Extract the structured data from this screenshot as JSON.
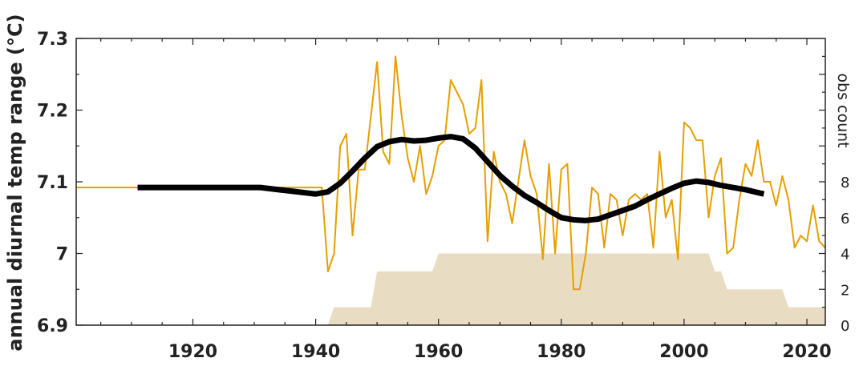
{
  "chart_data": {
    "type": "line",
    "xlabel": "",
    "ylabel": "annual diurnal temp range (°C)",
    "y2label": "obs count",
    "xlim": [
      1901,
      2023
    ],
    "ylim": [
      6.9,
      7.3
    ],
    "y2lim": [
      0,
      16
    ],
    "x_ticks": [
      1920,
      1940,
      1960,
      1980,
      2000,
      2020
    ],
    "y_ticks": [
      6.9,
      7.0,
      7.1,
      7.2,
      7.3
    ],
    "y_tick_labels": [
      "6.9",
      "7",
      "7.1",
      "7.2",
      "7.3"
    ],
    "y2_ticks": [
      0,
      2,
      4,
      6,
      8
    ],
    "grid": false,
    "colors": {
      "annual": "#E69F00",
      "smooth": "#000000",
      "count": "#E8DCC2"
    },
    "series": [
      {
        "kind": "annual",
        "x": [
          1901,
          1941,
          1942,
          1943,
          1944,
          1945,
          1946,
          1947,
          1948,
          1949,
          1950,
          1951,
          1952,
          1953,
          1954,
          1955,
          1956,
          1957,
          1958,
          1959,
          1960,
          1961,
          1962,
          1963,
          1964,
          1965,
          1966,
          1967,
          1968,
          1969,
          1970,
          1971,
          1972,
          1973,
          1974,
          1975,
          1976,
          1977,
          1978,
          1979,
          1980,
          1981,
          1982,
          1983,
          1984,
          1985,
          1986,
          1987,
          1988,
          1989,
          1990,
          1991,
          1992,
          1993,
          1994,
          1995,
          1996,
          1997,
          1998,
          1999,
          2000,
          2001,
          2002,
          2003,
          2004,
          2005,
          2006,
          2007,
          2008,
          2009,
          2010,
          2011,
          2012,
          2013,
          2014,
          2015,
          2016,
          2017,
          2018,
          2019,
          2020,
          2021,
          2022,
          2023
        ],
        "values": [
          7.092,
          7.092,
          6.975,
          7.0,
          7.15,
          7.167,
          7.025,
          7.117,
          7.117,
          7.192,
          7.267,
          7.142,
          7.125,
          7.275,
          7.192,
          7.133,
          7.1,
          7.15,
          7.083,
          7.108,
          7.15,
          7.158,
          7.242,
          7.225,
          7.208,
          7.167,
          7.175,
          7.242,
          7.017,
          7.142,
          7.1,
          7.083,
          7.042,
          7.1,
          7.158,
          7.108,
          7.083,
          6.992,
          7.125,
          7.0,
          7.117,
          7.125,
          6.95,
          6.95,
          7.0,
          7.092,
          7.083,
          7.008,
          7.083,
          7.075,
          7.025,
          7.075,
          7.083,
          7.075,
          7.083,
          7.008,
          7.142,
          7.05,
          7.075,
          6.992,
          7.183,
          7.175,
          7.158,
          7.158,
          7.05,
          7.108,
          7.133,
          7.0,
          7.008,
          7.075,
          7.125,
          7.108,
          7.158,
          7.1,
          7.1,
          7.067,
          7.108,
          7.075,
          7.008,
          7.025,
          7.017,
          7.067,
          7.017,
          7.008
        ]
      },
      {
        "kind": "smooth",
        "x": [
          1911,
          1931,
          1934,
          1937,
          1940,
          1942,
          1944,
          1946,
          1948,
          1950,
          1952,
          1954,
          1956,
          1958,
          1960,
          1962,
          1964,
          1966,
          1968,
          1970,
          1972,
          1974,
          1976,
          1978,
          1980,
          1982,
          1984,
          1986,
          1988,
          1990,
          1992,
          1994,
          1996,
          1998,
          2000,
          2002,
          2004,
          2006,
          2008,
          2010,
          2012,
          2013
        ],
        "values": [
          7.092,
          7.092,
          7.089,
          7.086,
          7.083,
          7.086,
          7.098,
          7.115,
          7.133,
          7.149,
          7.156,
          7.159,
          7.157,
          7.158,
          7.161,
          7.163,
          7.16,
          7.147,
          7.128,
          7.109,
          7.094,
          7.081,
          7.071,
          7.06,
          7.05,
          7.047,
          7.046,
          7.048,
          7.054,
          7.06,
          7.066,
          7.075,
          7.083,
          7.091,
          7.098,
          7.101,
          7.099,
          7.095,
          7.092,
          7.089,
          7.085,
          7.083
        ]
      },
      {
        "kind": "count",
        "x": [
          1942,
          1943,
          1949,
          1950,
          1958,
          1959,
          1960,
          2004,
          2005,
          2006,
          2007,
          2016,
          2017,
          2023
        ],
        "values": [
          0,
          1,
          1,
          3,
          3,
          3,
          4,
          4,
          3,
          3,
          2,
          2,
          1,
          1
        ]
      }
    ]
  }
}
